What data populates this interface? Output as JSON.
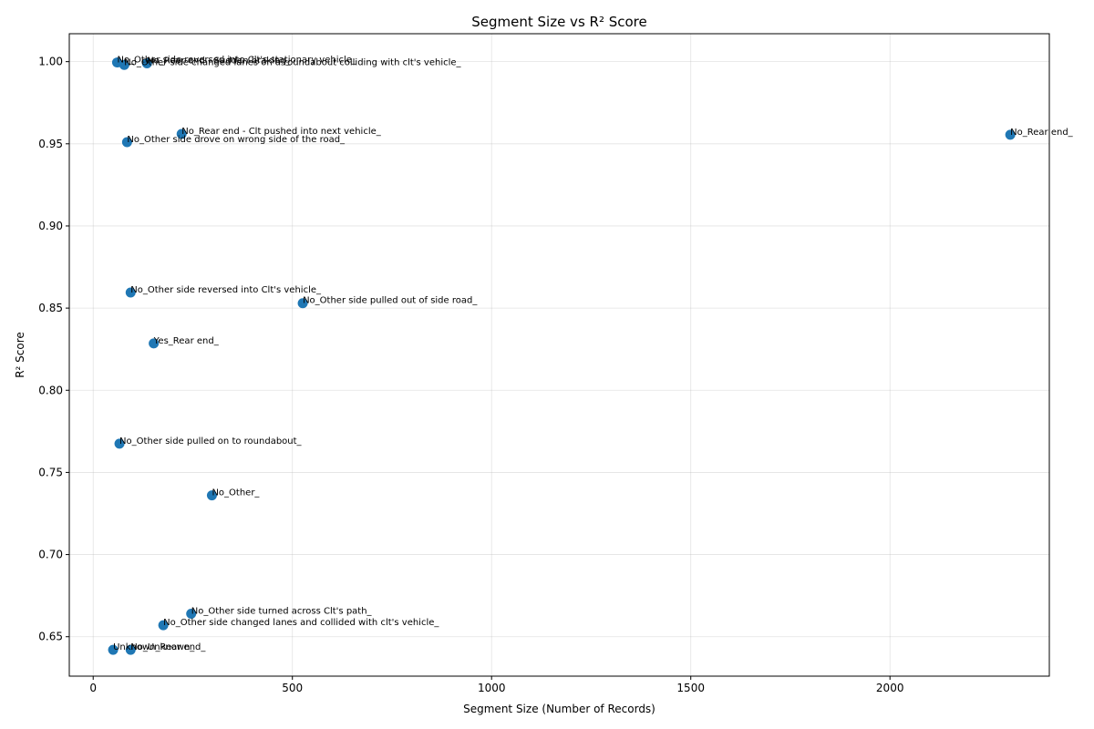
{
  "chart_data": {
    "type": "scatter",
    "title": "Segment Size vs R² Score",
    "xlabel": "Segment Size (Number of Records)",
    "ylabel": "R² Score",
    "xlim": [
      -60,
      2400
    ],
    "ylim": [
      0.626,
      1.017
    ],
    "xticks": [
      0,
      500,
      1000,
      1500,
      2000
    ],
    "yticks": [
      0.65,
      0.7,
      0.75,
      0.8,
      0.85,
      0.9,
      0.95,
      1.0
    ],
    "xtick_labels": [
      "0",
      "500",
      "1000",
      "1500",
      "2000"
    ],
    "ytick_labels": [
      "0.65",
      "0.70",
      "0.75",
      "0.80",
      "0.85",
      "0.90",
      "0.95",
      "1.00"
    ],
    "grid": true,
    "color": "#1f77b4",
    "points": [
      {
        "x": 60,
        "y": 0.9995,
        "label": "No_Other side reversed into Clt's stationary vehicle_"
      },
      {
        "x": 135,
        "y": 0.999,
        "label": "No_Rear end - Sudden braking_"
      },
      {
        "x": 78,
        "y": 0.998,
        "label": "No_Other side changed lanes on a roundabout colliding with clt's vehicle_"
      },
      {
        "x": 222,
        "y": 0.956,
        "label": "No_Rear end - Clt pushed into next vehicle_"
      },
      {
        "x": 85,
        "y": 0.951,
        "label": "No_Other side drove on wrong side of the road_"
      },
      {
        "x": 2302,
        "y": 0.9555,
        "label": "No_Rear end_"
      },
      {
        "x": 94,
        "y": 0.8595,
        "label": "No_Other side reversed into Clt's vehicle_"
      },
      {
        "x": 526,
        "y": 0.853,
        "label": "No_Other side pulled out of side road_"
      },
      {
        "x": 152,
        "y": 0.8285,
        "label": "Yes_Rear end_"
      },
      {
        "x": 66,
        "y": 0.7675,
        "label": "No_Other side pulled on to roundabout_"
      },
      {
        "x": 298,
        "y": 0.736,
        "label": "No_Other_"
      },
      {
        "x": 246,
        "y": 0.664,
        "label": "No_Other side turned across Clt's path_"
      },
      {
        "x": 176,
        "y": 0.657,
        "label": "No_Other side changed lanes and collided with clt's vehicle_"
      },
      {
        "x": 50,
        "y": 0.642,
        "label": "Unknown_Rear end_"
      },
      {
        "x": 94,
        "y": 0.642,
        "label": "No_Unknown_"
      }
    ]
  }
}
